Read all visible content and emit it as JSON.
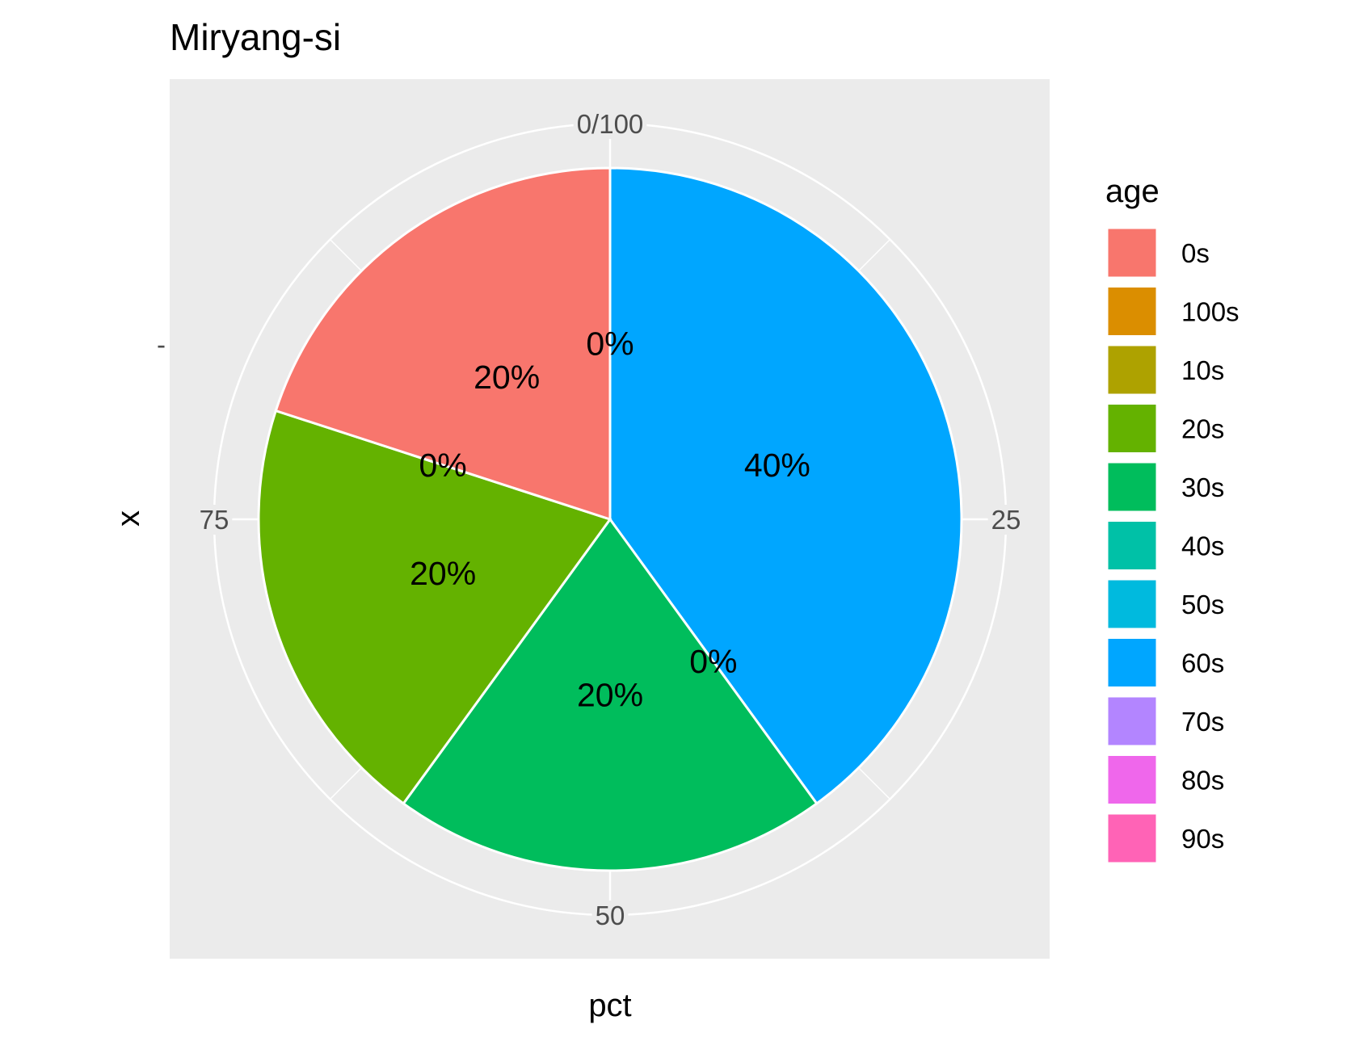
{
  "chart_data": {
    "type": "pie",
    "title": "Miryang-si",
    "xlabel": "pct",
    "ylabel": "x",
    "y_tick_label": "-",
    "angle_ticks": [
      {
        "label": "0/100",
        "value": 0
      },
      {
        "label": "25",
        "value": 25
      },
      {
        "label": "50",
        "value": 50
      },
      {
        "label": "75",
        "value": 75
      }
    ],
    "legend": {
      "title": "age",
      "position": "right",
      "entries": [
        {
          "name": "0s",
          "color": "#F8766D"
        },
        {
          "name": "100s",
          "color": "#DB8E00"
        },
        {
          "name": "10s",
          "color": "#AEA200"
        },
        {
          "name": "20s",
          "color": "#64B200"
        },
        {
          "name": "30s",
          "color": "#00BD5C"
        },
        {
          "name": "40s",
          "color": "#00C1A7"
        },
        {
          "name": "50s",
          "color": "#00BADE"
        },
        {
          "name": "60s",
          "color": "#00A6FF"
        },
        {
          "name": "70s",
          "color": "#B385FF"
        },
        {
          "name": "80s",
          "color": "#EF67EB"
        },
        {
          "name": "90s",
          "color": "#FF63B6"
        }
      ]
    },
    "slices": [
      {
        "category": "60s",
        "value": 40,
        "label": "40%"
      },
      {
        "category": "50s",
        "value": 0,
        "label": "0%"
      },
      {
        "category": "30s",
        "value": 20,
        "label": "20%"
      },
      {
        "category": "20s",
        "value": 20,
        "label": "20%"
      },
      {
        "category": "10s",
        "value": 0,
        "label": "0%"
      },
      {
        "category": "0s",
        "value": 20,
        "label": "20%"
      },
      {
        "category": "100s",
        "value": 0,
        "label": "0%"
      }
    ],
    "grid": true,
    "panel_background": "#EBEBEB",
    "grid_color": "#FFFFFF"
  }
}
